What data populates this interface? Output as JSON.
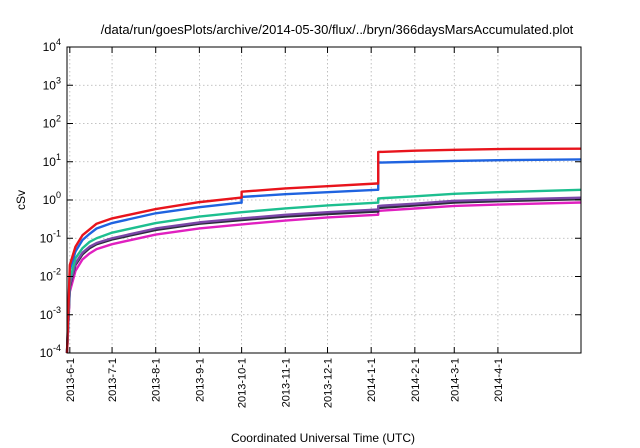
{
  "chart_data": {
    "type": "line",
    "title": "/data/run/goesPlots/archive/2014-05-30/flux/../bryn/366daysMarsAccumulated.plot",
    "xlabel": "Coordinated Universal Time (UTC)",
    "ylabel": "cSv",
    "yscale": "log",
    "ylim": [
      0.0001,
      10000
    ],
    "yticks": [
      {
        "base": "10",
        "exp": "-4"
      },
      {
        "base": "10",
        "exp": "-3"
      },
      {
        "base": "10",
        "exp": "-2"
      },
      {
        "base": "10",
        "exp": "-1"
      },
      {
        "base": "10",
        "exp": "0"
      },
      {
        "base": "10",
        "exp": "1"
      },
      {
        "base": "10",
        "exp": "2"
      },
      {
        "base": "10",
        "exp": "3"
      },
      {
        "base": "10",
        "exp": "4"
      }
    ],
    "xlim": [
      "2013-05-30",
      "2014-05-30"
    ],
    "xticks": [
      "2013-6-1",
      "2013-7-1",
      "2013-8-1",
      "2013-9-1",
      "2013-10-1",
      "2013-11-1",
      "2013-12-1",
      "2014-1-1",
      "2014-2-1",
      "2014-3-1",
      "2014-4-1"
    ],
    "grid": true,
    "series": [
      {
        "color": "#e8141c",
        "x": [
          "2013-05-30",
          "2013-06-01",
          "2013-06-05",
          "2013-06-10",
          "2013-06-15",
          "2013-06-20",
          "2013-07-01",
          "2013-08-01",
          "2013-09-01",
          "2013-09-30",
          "2013-10-01",
          "2013-11-01",
          "2013-12-01",
          "2014-01-05",
          "2014-01-06",
          "2014-02-01",
          "2014-03-01",
          "2014-04-01",
          "2014-05-30"
        ],
        "y": [
          0.0001,
          0.02,
          0.06,
          0.12,
          0.17,
          0.24,
          0.33,
          0.58,
          0.88,
          1.15,
          1.65,
          2.0,
          2.3,
          2.7,
          18.0,
          19.5,
          20.5,
          21.5,
          22.0
        ]
      },
      {
        "color": "#1f63e0",
        "x": [
          "2013-05-30",
          "2013-06-01",
          "2013-06-05",
          "2013-06-10",
          "2013-06-15",
          "2013-06-20",
          "2013-07-01",
          "2013-08-01",
          "2013-09-01",
          "2013-09-30",
          "2013-10-01",
          "2013-11-01",
          "2013-12-01",
          "2014-01-05",
          "2014-01-06",
          "2014-02-01",
          "2014-03-01",
          "2014-04-01",
          "2014-05-30"
        ],
        "y": [
          0.0001,
          0.015,
          0.045,
          0.09,
          0.13,
          0.18,
          0.25,
          0.45,
          0.65,
          0.85,
          1.2,
          1.42,
          1.6,
          1.85,
          9.5,
          10.0,
          10.5,
          11.0,
          11.5
        ]
      },
      {
        "color": "#1dbf8f",
        "x": [
          "2013-05-30",
          "2013-06-01",
          "2013-06-05",
          "2013-06-10",
          "2013-06-15",
          "2013-06-20",
          "2013-07-01",
          "2013-08-01",
          "2013-09-01",
          "2013-10-01",
          "2013-11-01",
          "2013-12-01",
          "2014-01-05",
          "2014-01-06",
          "2014-02-01",
          "2014-03-01",
          "2014-04-01",
          "2014-05-30"
        ],
        "y": [
          0.0001,
          0.008,
          0.03,
          0.055,
          0.08,
          0.1,
          0.14,
          0.25,
          0.37,
          0.48,
          0.6,
          0.72,
          0.85,
          1.1,
          1.25,
          1.45,
          1.6,
          1.85
        ]
      },
      {
        "color": "#7a46a8",
        "x": [
          "2013-05-30",
          "2013-06-01",
          "2013-06-05",
          "2013-06-10",
          "2013-06-15",
          "2013-06-20",
          "2013-07-01",
          "2013-08-01",
          "2013-09-01",
          "2013-10-01",
          "2013-11-01",
          "2013-12-01",
          "2014-01-05",
          "2014-01-06",
          "2014-02-01",
          "2014-03-01",
          "2014-04-01",
          "2014-05-30"
        ],
        "y": [
          0.0001,
          0.006,
          0.022,
          0.042,
          0.06,
          0.075,
          0.1,
          0.18,
          0.26,
          0.33,
          0.41,
          0.48,
          0.56,
          0.7,
          0.8,
          0.95,
          1.02,
          1.15
        ]
      },
      {
        "color": "#2b2b3a",
        "x": [
          "2013-05-30",
          "2013-06-01",
          "2013-06-05",
          "2013-06-10",
          "2013-06-15",
          "2013-06-20",
          "2013-07-01",
          "2013-08-01",
          "2013-09-01",
          "2013-10-01",
          "2013-11-01",
          "2013-12-01",
          "2014-01-05",
          "2014-01-06",
          "2014-02-01",
          "2014-03-01",
          "2014-04-01",
          "2014-05-30"
        ],
        "y": [
          0.0001,
          0.0055,
          0.02,
          0.038,
          0.055,
          0.07,
          0.093,
          0.165,
          0.24,
          0.3,
          0.37,
          0.43,
          0.5,
          0.62,
          0.72,
          0.86,
          0.93,
          1.05
        ]
      },
      {
        "color": "#e020c0",
        "x": [
          "2013-05-30",
          "2013-06-01",
          "2013-06-05",
          "2013-06-10",
          "2013-06-15",
          "2013-06-20",
          "2013-07-01",
          "2013-08-01",
          "2013-09-01",
          "2013-10-01",
          "2013-11-01",
          "2013-12-01",
          "2014-01-05",
          "2014-01-06",
          "2014-02-01",
          "2014-03-01",
          "2014-04-01",
          "2014-05-30"
        ],
        "y": [
          0.0001,
          0.004,
          0.014,
          0.028,
          0.04,
          0.052,
          0.07,
          0.125,
          0.18,
          0.23,
          0.29,
          0.35,
          0.41,
          0.52,
          0.6,
          0.7,
          0.76,
          0.86
        ]
      }
    ]
  }
}
